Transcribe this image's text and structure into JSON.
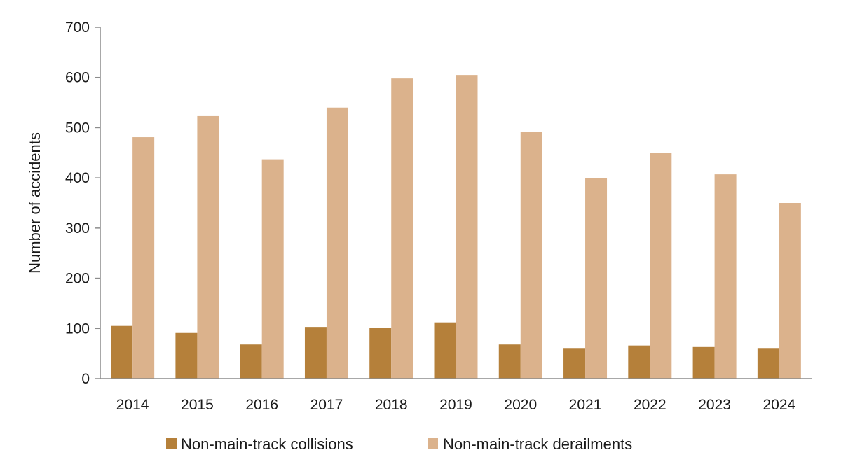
{
  "chart_data": {
    "type": "bar",
    "title": "",
    "xlabel": "",
    "ylabel": "Number of accidents",
    "ylim": [
      0,
      700
    ],
    "yticks": [
      0,
      100,
      200,
      300,
      400,
      500,
      600,
      700
    ],
    "grid": false,
    "legend_position": "bottom",
    "categories": [
      "2014",
      "2015",
      "2016",
      "2017",
      "2018",
      "2019",
      "2020",
      "2021",
      "2022",
      "2023",
      "2024"
    ],
    "series": [
      {
        "name": "Non-main-track collisions",
        "color": "#b5803a",
        "values": [
          105,
          91,
          68,
          103,
          101,
          112,
          68,
          61,
          66,
          63,
          61
        ]
      },
      {
        "name": "Non-main-track derailments",
        "color": "#dbb28c",
        "values": [
          481,
          523,
          437,
          540,
          598,
          605,
          491,
          400,
          449,
          407,
          350
        ]
      }
    ]
  }
}
